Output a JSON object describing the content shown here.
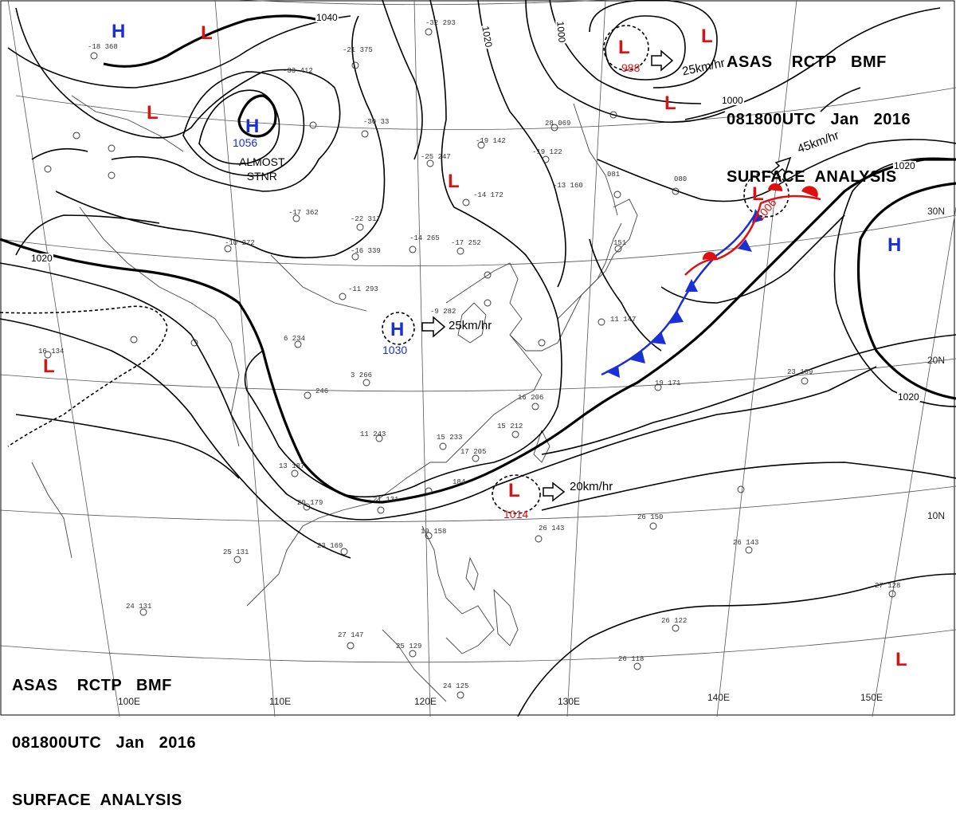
{
  "header": {
    "line1": "ASAS    RCTP   BMF",
    "line2": "081800UTC   Jan   2016",
    "line3": "SURFACE  ANALYSIS"
  },
  "colors": {
    "high": "#1a2fd6",
    "low": "#e01010",
    "front_cold": "#1a2fd6",
    "front_warm": "#e01010",
    "isobar": "#000000"
  },
  "pressure_systems": [
    {
      "id": "h-nw",
      "type": "H",
      "label": "H",
      "value": ""
    },
    {
      "id": "l-n1",
      "type": "L",
      "label": "L",
      "value": ""
    },
    {
      "id": "l-w1",
      "type": "L",
      "label": "L",
      "value": ""
    },
    {
      "id": "h-siberia",
      "type": "H",
      "label": "H",
      "value": "1056"
    },
    {
      "id": "l-ne",
      "type": "L",
      "label": "L",
      "value": "988"
    },
    {
      "id": "l-ne2",
      "type": "L",
      "label": "L",
      "value": ""
    },
    {
      "id": "l-ne3",
      "type": "L",
      "label": "L",
      "value": ""
    },
    {
      "id": "l-c",
      "type": "L",
      "label": "L",
      "value": ""
    },
    {
      "id": "l-front",
      "type": "L",
      "label": "L",
      "value": "1006"
    },
    {
      "id": "h-e",
      "type": "H",
      "label": "H",
      "value": ""
    },
    {
      "id": "h-china",
      "type": "H",
      "label": "H",
      "value": "1030"
    },
    {
      "id": "l-w2",
      "type": "L",
      "label": "L",
      "value": ""
    },
    {
      "id": "l-scs",
      "type": "L",
      "label": "L",
      "value": "1014"
    },
    {
      "id": "l-se",
      "type": "L",
      "label": "L",
      "value": ""
    }
  ],
  "movement": [
    {
      "id": "mv-ne",
      "text": "25km/hr"
    },
    {
      "id": "mv-front",
      "text": "45km/hr"
    },
    {
      "id": "mv-china",
      "text": "25km/hr"
    },
    {
      "id": "mv-scs",
      "text": "20km/hr"
    }
  ],
  "isobar_labels": [
    {
      "id": "iso-1040",
      "text": "1040"
    },
    {
      "id": "iso-1020a",
      "text": "1020"
    },
    {
      "id": "iso-1000a",
      "text": "1000"
    },
    {
      "id": "iso-1000b",
      "text": "1000"
    },
    {
      "id": "iso-1020b",
      "text": "1020"
    },
    {
      "id": "iso-1020c",
      "text": "1020"
    },
    {
      "id": "iso-1020d",
      "text": "1020"
    }
  ],
  "annotation": {
    "line1": "ALMOST",
    "line2": "STNR"
  },
  "grid_labels": {
    "lon": [
      "100E",
      "110E",
      "120E",
      "130E",
      "140E",
      "150E"
    ],
    "lat": [
      "30N",
      "20N",
      "10N"
    ]
  },
  "station_plots": [
    {
      "id": "s1",
      "text": "-18 368"
    },
    {
      "id": "s2",
      "text": "-33 412"
    },
    {
      "id": "s3",
      "text": "-21 375"
    },
    {
      "id": "s4",
      "text": "-32 293"
    },
    {
      "id": "s5",
      "text": "-30 33"
    },
    {
      "id": "s6",
      "text": "-19 142"
    },
    {
      "id": "s7",
      "text": "-25 247"
    },
    {
      "id": "s8",
      "text": "-14 172"
    },
    {
      "id": "s9",
      "text": "-17 362"
    },
    {
      "id": "s10",
      "text": "-22 317"
    },
    {
      "id": "s11",
      "text": "-10 272"
    },
    {
      "id": "s12",
      "text": "-16 339"
    },
    {
      "id": "s13",
      "text": "-14 265"
    },
    {
      "id": "s14",
      "text": "-17 252"
    },
    {
      "id": "s15",
      "text": "-11 293"
    },
    {
      "id": "s16",
      "text": "6 234"
    },
    {
      "id": "s17",
      "text": "3 266"
    },
    {
      "id": "s18",
      "text": "246"
    },
    {
      "id": "s19",
      "text": "11 243"
    },
    {
      "id": "s20",
      "text": "15 233"
    },
    {
      "id": "s21",
      "text": "17 205"
    },
    {
      "id": "s22",
      "text": "15 212"
    },
    {
      "id": "s23",
      "text": "16 206"
    },
    {
      "id": "s24",
      "text": "13 187"
    },
    {
      "id": "s25",
      "text": "20 179"
    },
    {
      "id": "s26",
      "text": "21 131"
    },
    {
      "id": "s27",
      "text": "23 169"
    },
    {
      "id": "s28",
      "text": "25 131"
    },
    {
      "id": "s29",
      "text": "24 131"
    },
    {
      "id": "s30",
      "text": "27 147"
    },
    {
      "id": "s31",
      "text": "25 129"
    },
    {
      "id": "s32",
      "text": "19 158"
    },
    {
      "id": "s33",
      "text": "184"
    },
    {
      "id": "s34",
      "text": "26 143"
    },
    {
      "id": "s35",
      "text": "26 150"
    },
    {
      "id": "s36",
      "text": "26 143"
    },
    {
      "id": "s37",
      "text": "23 189"
    },
    {
      "id": "s38",
      "text": "19 171"
    },
    {
      "id": "s39",
      "text": "27 128"
    },
    {
      "id": "s40",
      "text": "26 118"
    },
    {
      "id": "s41",
      "text": "26 122"
    },
    {
      "id": "s42",
      "text": "24 125"
    },
    {
      "id": "s43",
      "text": "16 134"
    },
    {
      "id": "s44",
      "text": "-19 122"
    },
    {
      "id": "s45",
      "text": "28 069"
    },
    {
      "id": "s46",
      "text": "-13 160"
    },
    {
      "id": "s47",
      "text": "11 147"
    },
    {
      "id": "s48",
      "text": "080"
    },
    {
      "id": "s49",
      "text": "081"
    },
    {
      "id": "s50",
      "text": "151"
    },
    {
      "id": "s51",
      "text": "-9 282"
    }
  ]
}
